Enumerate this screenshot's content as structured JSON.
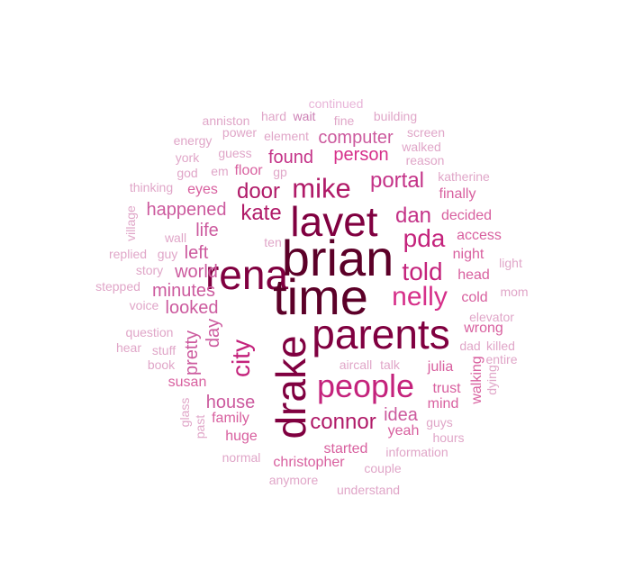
{
  "colors": {
    "darkest": "#5c0028",
    "dark": "#800040",
    "mid": "#b01a68",
    "bright": "#d6308a",
    "light": "#e165a8",
    "pale": "#e89bc8",
    "faint": "#e8b4d8"
  },
  "words": [
    "continued",
    "anniston",
    "hard",
    "wait",
    "fine",
    "building",
    "power",
    "element",
    "screen",
    "energy",
    "computer",
    "walked",
    "guess",
    "reason",
    "york",
    "person",
    "found",
    "floor",
    "gp",
    "em",
    "god",
    "katherine",
    "mike",
    "portal",
    "thinking",
    "eyes",
    "door",
    "finally",
    "lavet",
    "village",
    "happened",
    "kate",
    "dan",
    "decided",
    "life",
    "wall",
    "pda",
    "access",
    "ten",
    "brian",
    "night",
    "replied",
    "guy",
    "left",
    "light",
    "rena",
    "story",
    "told",
    "world",
    "head",
    "nelly",
    "stepped",
    "mom",
    "minutes",
    "time",
    "cold",
    "voice",
    "looked",
    "day",
    "elevator",
    "question",
    "pretty",
    "wrong",
    "parents",
    "city",
    "hear",
    "stuff",
    "killed",
    "dad",
    "entire",
    "drake",
    "book",
    "aircall",
    "talk",
    "julia",
    "walking",
    "dying",
    "susan",
    "people",
    "trust",
    "house",
    "glass",
    "mind",
    "idea",
    "guys",
    "family",
    "past",
    "connor",
    "yeah",
    "huge",
    "hours",
    "started",
    "information",
    "normal",
    "christopher",
    "couple",
    "anymore",
    "understand"
  ]
}
